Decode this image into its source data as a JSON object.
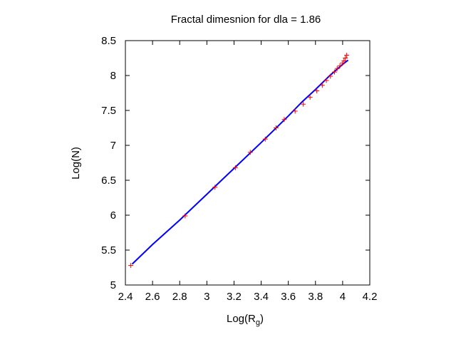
{
  "chart_data": {
    "type": "scatter",
    "title": "Fractal dimesnion for dla = 1.86",
    "xlabel": "Log(R",
    "xlabel_sub": "g",
    "xlabel_close": ")",
    "ylabel": "Log(N)",
    "xlim": [
      2.4,
      4.2
    ],
    "ylim": [
      5,
      8.5
    ],
    "xticks": [
      2.4,
      2.6,
      2.8,
      3,
      3.2,
      3.4,
      3.6,
      3.8,
      4,
      4.2
    ],
    "yticks": [
      5,
      5.5,
      6,
      6.5,
      7,
      7.5,
      8,
      8.5
    ],
    "grid": false,
    "legend": "none",
    "series": [
      {
        "kind": "points",
        "marker": "+",
        "color": "#ff0000",
        "x": [
          2.44,
          2.84,
          3.06,
          3.21,
          3.32,
          3.43,
          3.51,
          3.57,
          3.65,
          3.71,
          3.76,
          3.81,
          3.85,
          3.88,
          3.91,
          3.94,
          3.96,
          3.98,
          4.0,
          4.01,
          4.02,
          4.03
        ],
        "y": [
          5.28,
          5.99,
          6.4,
          6.68,
          6.9,
          7.09,
          7.25,
          7.37,
          7.49,
          7.59,
          7.69,
          7.78,
          7.86,
          7.93,
          7.99,
          8.05,
          8.1,
          8.14,
          8.18,
          8.21,
          8.25,
          8.29
        ]
      },
      {
        "kind": "line",
        "color": "#0000ff",
        "x": [
          2.45,
          2.6,
          2.8,
          3.0,
          3.2,
          3.4,
          3.6,
          3.7,
          3.8,
          3.9,
          4.0,
          4.04
        ],
        "y": [
          5.3,
          5.58,
          5.93,
          6.3,
          6.67,
          7.04,
          7.42,
          7.62,
          7.8,
          7.99,
          8.16,
          8.22
        ]
      }
    ]
  }
}
